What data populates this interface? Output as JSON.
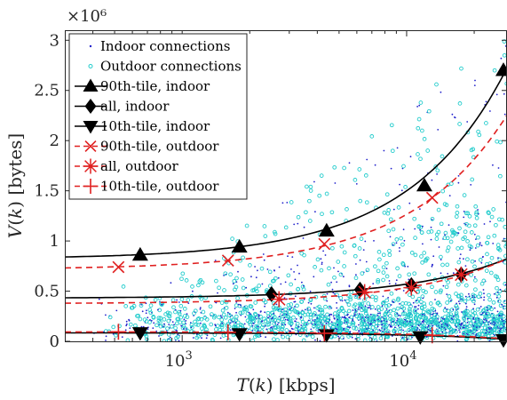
{
  "chart_data": {
    "type": "scatter",
    "title": "",
    "x_scale": "log",
    "xlim": [
      300,
      28000
    ],
    "ylim": [
      0,
      3100000
    ],
    "y_multiplier_label": "×10⁶",
    "xlabel_parts": [
      "T",
      "(",
      "k",
      ")",
      " [kbps]"
    ],
    "ylabel_parts": [
      "V",
      "(",
      "k",
      ")",
      " [bytes]"
    ],
    "x_ticks": [
      {
        "value": 1000,
        "base": "10",
        "exp": "3"
      },
      {
        "value": 10000,
        "base": "10",
        "exp": "4"
      }
    ],
    "y_ticks": [
      {
        "value": 0,
        "label": "0"
      },
      {
        "value": 500000,
        "label": "0.5"
      },
      {
        "value": 1000000,
        "label": "1"
      },
      {
        "value": 1500000,
        "label": "1.5"
      },
      {
        "value": 2000000,
        "label": "2"
      },
      {
        "value": 2500000,
        "label": "2.5"
      },
      {
        "value": 3000000,
        "label": "3"
      }
    ],
    "grid": false,
    "legend_position": "top-left",
    "scatter": [
      {
        "name": "Indoor connections",
        "color": "#2222cc",
        "marker": "dot"
      },
      {
        "name": "Outdoor connections",
        "color": "#22cccc",
        "marker": "circle"
      }
    ],
    "series": [
      {
        "name": "90th-tile, indoor",
        "color": "#000000",
        "marker": "triangle-up",
        "line": "solid",
        "x": [
          650,
          1800,
          4400,
          12000,
          27000
        ],
        "y": [
          860000,
          940000,
          1100000,
          1550000,
          2700000
        ]
      },
      {
        "name": "all, indoor",
        "color": "#000000",
        "marker": "diamond",
        "line": "solid",
        "x": [
          2500,
          6200,
          10500,
          17500
        ],
        "y": [
          470000,
          515000,
          560000,
          665000
        ]
      },
      {
        "name": "10th-tile, indoor",
        "color": "#000000",
        "marker": "triangle-down",
        "line": "solid",
        "x": [
          650,
          1800,
          4400,
          11500,
          27000
        ],
        "y": [
          85000,
          75000,
          65000,
          45000,
          15000
        ]
      },
      {
        "name": "90th-tile, outdoor",
        "color": "#e02020",
        "marker": "x",
        "line": "dashed",
        "x": [
          520,
          1600,
          4300,
          13000
        ],
        "y": [
          740000,
          805000,
          970000,
          1430000
        ]
      },
      {
        "name": "all, outdoor",
        "color": "#e02020",
        "marker": "star",
        "line": "dashed",
        "x": [
          2700,
          6500,
          10500,
          17500
        ],
        "y": [
          420000,
          490000,
          535000,
          665000
        ]
      },
      {
        "name": "10th-tile, outdoor",
        "color": "#e02020",
        "marker": "plus",
        "line": "dashed",
        "x": [
          520,
          1600,
          4300,
          13000
        ],
        "y": [
          95000,
          90000,
          80000,
          60000
        ]
      }
    ],
    "fits": [
      {
        "series": "90th-tile, indoor",
        "color": "#000000",
        "dash": "",
        "y0": 820000,
        "slope": 68
      },
      {
        "series": "all, indoor",
        "color": "#000000",
        "dash": "",
        "y0": 430000,
        "slope": 14
      },
      {
        "series": "10th-tile, indoor",
        "color": "#000000",
        "dash": "",
        "y0": 85000,
        "slope": -2.3
      },
      {
        "series": "90th-tile, outdoor",
        "color": "#e02020",
        "dash": "7,5",
        "y0": 715000,
        "slope": 55
      },
      {
        "series": "all, outdoor",
        "color": "#e02020",
        "dash": "7,5",
        "y0": 375000,
        "slope": 16
      },
      {
        "series": "10th-tile, outdoor",
        "color": "#e02020",
        "dash": "7,5",
        "y0": 95000,
        "slope": -2.5
      }
    ]
  }
}
